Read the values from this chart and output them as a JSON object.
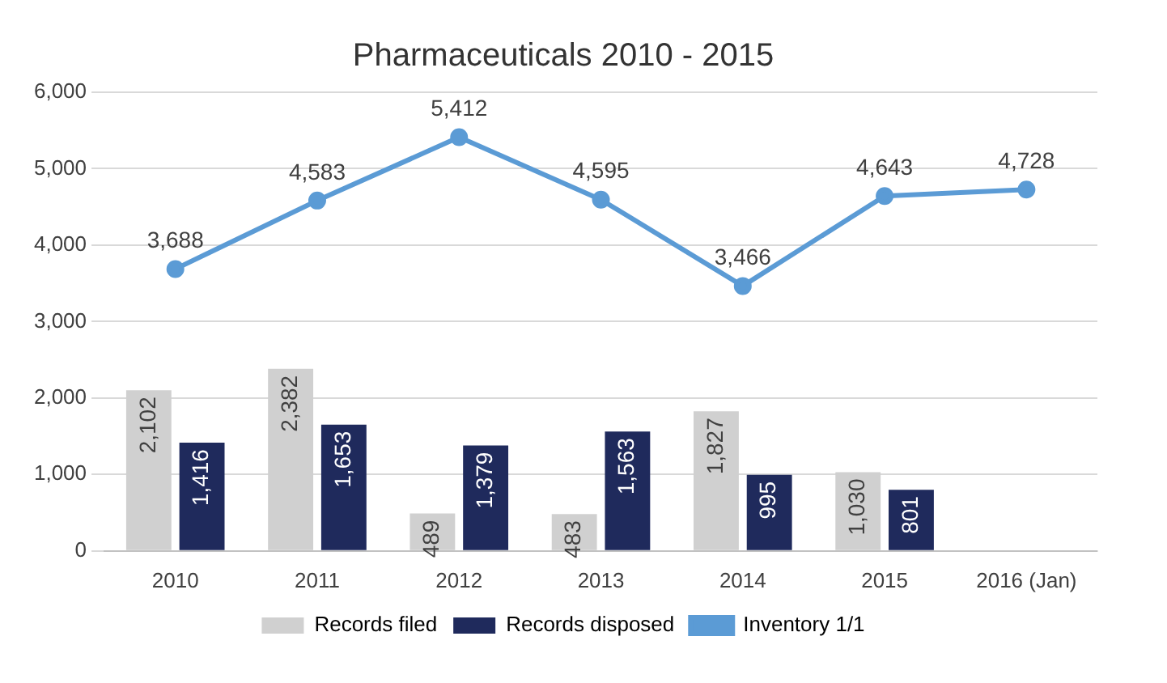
{
  "chart_data": {
    "type": "bar",
    "title": "Pharmaceuticals 2010 - 2015",
    "categories": [
      "2010",
      "2011",
      "2012",
      "2013",
      "2014",
      "2015",
      "2016 (Jan)"
    ],
    "series": [
      {
        "name": "Records filed",
        "color": "#d0d0d0",
        "values": [
          2102,
          2382,
          489,
          483,
          1827,
          1030,
          null
        ],
        "value_labels": [
          "2,102",
          "2,382",
          "489",
          "483",
          "1,827",
          "1,030",
          null
        ]
      },
      {
        "name": "Records disposed",
        "color": "#1f2a5c",
        "values": [
          1416,
          1653,
          1379,
          1563,
          995,
          801,
          null
        ],
        "value_labels": [
          "1,416",
          "1,653",
          "1,379",
          "1,563",
          "995",
          "801",
          null
        ]
      },
      {
        "name": "Inventory 1/1",
        "type": "line",
        "color": "#5b9bd5",
        "marker": "circle",
        "values": [
          3688,
          4583,
          5412,
          4595,
          3466,
          4643,
          4728
        ],
        "value_labels": [
          "3,688",
          "4,583",
          "5,412",
          "4,595",
          "3,466",
          "4,643",
          "4,728"
        ]
      }
    ],
    "ylim": [
      0,
      6000
    ],
    "yticks": [
      {
        "value": 0,
        "label": "0"
      },
      {
        "value": 1000,
        "label": "1,000"
      },
      {
        "value": 2000,
        "label": "2,000"
      },
      {
        "value": 3000,
        "label": "3,000"
      },
      {
        "value": 4000,
        "label": "4,000"
      },
      {
        "value": 5000,
        "label": "5,000"
      },
      {
        "value": 6000,
        "label": "6,000"
      }
    ],
    "grid": "y",
    "legend": "bottom"
  }
}
